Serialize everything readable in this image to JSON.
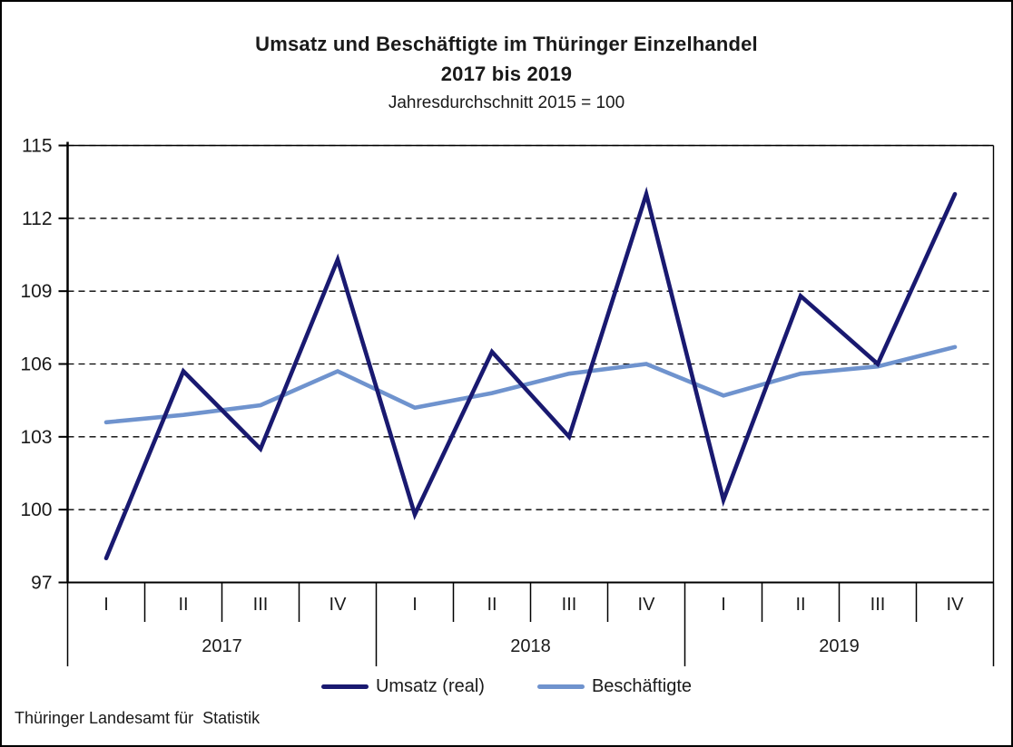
{
  "header": {
    "title_line1": "Umsatz und Beschäftigte im Thüringer Einzelhandel",
    "title_line2": "2017 bis 2019",
    "subtitle": "Jahresdurchschnitt 2015 = 100"
  },
  "legend": [
    {
      "label": "Umsatz (real)",
      "color": "#191970"
    },
    {
      "label": "Beschäftigte",
      "color": "#6f93ce"
    }
  ],
  "footer": {
    "source": "Thüringer Landesamt für  Statistik"
  },
  "chart_data": {
    "type": "line",
    "title": "Umsatz und Beschäftigte im Thüringer Einzelhandel 2017 bis 2019",
    "subtitle": "Jahresdurchschnitt 2015 = 100",
    "categories": [
      "I",
      "II",
      "III",
      "IV",
      "I",
      "II",
      "III",
      "IV",
      "I",
      "II",
      "III",
      "IV"
    ],
    "year_groups": [
      {
        "label": "2017",
        "quarters": 4
      },
      {
        "label": "2018",
        "quarters": 4
      },
      {
        "label": "2019",
        "quarters": 4
      }
    ],
    "series": [
      {
        "name": "Umsatz (real)",
        "color": "#191970",
        "values": [
          98.0,
          105.7,
          102.5,
          110.3,
          99.8,
          106.5,
          103.0,
          113.0,
          100.4,
          108.8,
          106.0,
          113.0
        ]
      },
      {
        "name": "Beschäftigte",
        "color": "#6f93ce",
        "values": [
          103.6,
          103.9,
          104.3,
          105.7,
          104.2,
          104.8,
          105.6,
          106.0,
          104.7,
          105.6,
          105.9,
          106.7
        ]
      }
    ],
    "ylim": [
      97,
      115
    ],
    "yticks": [
      97,
      100,
      103,
      106,
      109,
      112,
      115
    ],
    "grid": "horizontal-dashed",
    "legend_position": "bottom"
  }
}
